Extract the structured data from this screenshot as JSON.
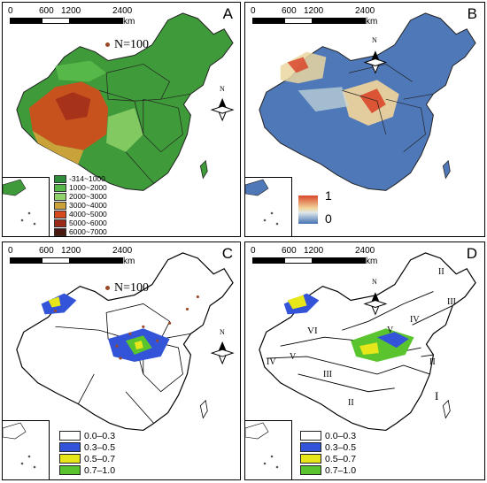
{
  "panels": {
    "A": {
      "letter": "A",
      "points_label": "N=100",
      "legend": [
        {
          "label": "-314~1000",
          "color": "#2e8b3a"
        },
        {
          "label": "1000~2000",
          "color": "#55b848"
        },
        {
          "label": "2000~3000",
          "color": "#8fd16a"
        },
        {
          "label": "3000~4000",
          "color": "#c9a23a"
        },
        {
          "label": "4000~5000",
          "color": "#d64a1c"
        },
        {
          "label": "5000~6000",
          "color": "#9c2a18"
        },
        {
          "label": "6000~7000",
          "color": "#4a1a10"
        }
      ]
    },
    "B": {
      "letter": "B",
      "ramp_high": "1",
      "ramp_low": "0"
    },
    "C": {
      "letter": "C",
      "points_label": "N=100",
      "legend": [
        {
          "label": "0.0–0.3",
          "color": "#ffffff"
        },
        {
          "label": "0.3–0.5",
          "color": "#3353d9"
        },
        {
          "label": "0.5–0.7",
          "color": "#e6e61a"
        },
        {
          "label": "0.7–1.0",
          "color": "#59c42e"
        }
      ]
    },
    "D": {
      "letter": "D",
      "legend": [
        {
          "label": "0.0–0.3",
          "color": "#ffffff"
        },
        {
          "label": "0.3–0.5",
          "color": "#3353d9"
        },
        {
          "label": "0.5–0.7",
          "color": "#e6e61a"
        },
        {
          "label": "0.7–1.0",
          "color": "#59c42e"
        }
      ],
      "regions": [
        "I",
        "II",
        "II",
        "II",
        "III",
        "III",
        "IV",
        "IV",
        "V",
        "V",
        "VI"
      ]
    }
  },
  "scale": {
    "ticks": [
      "0",
      "600",
      "1200",
      "2400"
    ],
    "unit": "km"
  },
  "north": "N",
  "colors": {
    "dot": "#9a4a2a",
    "land_green": "#3f9a3a",
    "land_blue": "#4f78b8"
  }
}
